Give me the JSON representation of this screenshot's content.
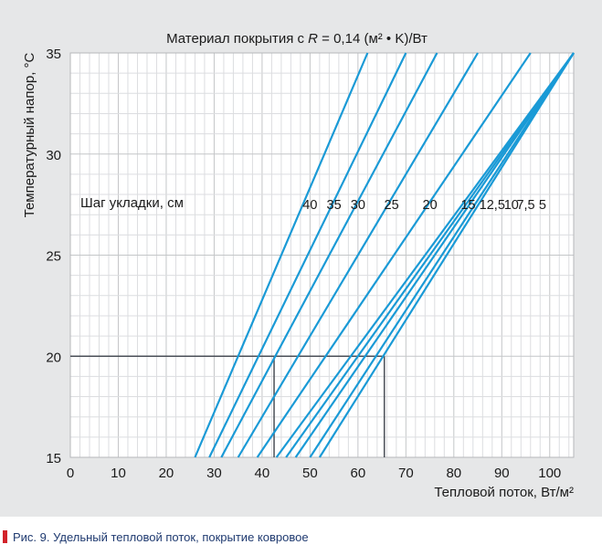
{
  "chart_data": {
    "type": "line",
    "title_parts": [
      "Материал покрытия с ",
      "R",
      " = 0,14 (м² • K)/Вт"
    ],
    "xlabel": "Тепловой поток, Вт/м²",
    "ylabel": "Температурный напор, °C",
    "xlim": [
      0,
      105
    ],
    "ylim": [
      15,
      35
    ],
    "x_ticks": [
      0,
      10,
      20,
      30,
      40,
      50,
      60,
      70,
      80,
      90,
      100
    ],
    "y_ticks": [
      15,
      20,
      25,
      30,
      35
    ],
    "grid": true,
    "series_header": "Шаг укладки, см",
    "label_y": 27.5,
    "series": [
      {
        "name": "40",
        "x": [
          26,
          62
        ]
      },
      {
        "name": "35",
        "x": [
          29,
          70
        ]
      },
      {
        "name": "30",
        "x": [
          31.5,
          76.5
        ]
      },
      {
        "name": "25",
        "x": [
          35,
          85
        ]
      },
      {
        "name": "20",
        "x": [
          39,
          96
        ]
      },
      {
        "name": "15",
        "x": [
          43,
          105
        ]
      },
      {
        "name": "12,5",
        "x": [
          45,
          105
        ]
      },
      {
        "name": "10",
        "x": [
          47,
          105
        ]
      },
      {
        "name": "7,5",
        "x": [
          50,
          105
        ]
      },
      {
        "name": "5",
        "x": [
          52,
          105
        ]
      }
    ],
    "series_y": [
      15,
      35
    ],
    "series_label_x": [
      50,
      55,
      60,
      67,
      75,
      83,
      88,
      92,
      95,
      98.5
    ],
    "annotation": {
      "y": 20,
      "x_points": [
        42.5,
        65.5
      ]
    },
    "line_color": "#1a9ad6",
    "annotation_color": "#4a4f57"
  },
  "caption": {
    "text": "Рис. 9. Удельный тепловой поток, покрытие ковровое",
    "marker_color": "#d2232a"
  }
}
